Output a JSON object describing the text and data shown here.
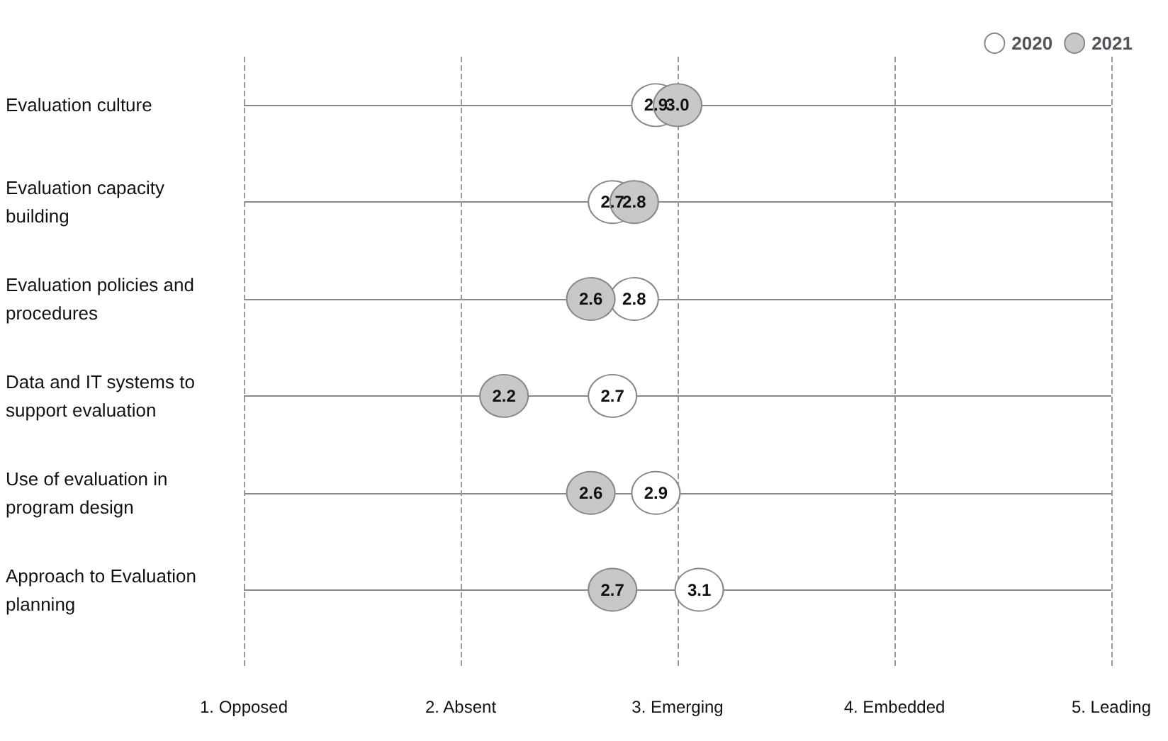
{
  "chart_data": {
    "type": "scatter",
    "orientation": "horizontal",
    "categories": [
      "Evaluation culture",
      "Evaluation capacity building",
      "Evaluation policies and procedures",
      "Data and IT systems to support evaluation",
      "Use of evaluation in program design",
      "Approach to Evaluation planning"
    ],
    "series": [
      {
        "name": "2020",
        "color": "#ffffff",
        "values": [
          2.9,
          2.7,
          2.8,
          2.7,
          2.9,
          3.1
        ],
        "value_labels": [
          "2.9",
          "2.7",
          "2.8",
          "2.7",
          "2.9",
          "3.1"
        ]
      },
      {
        "name": "2021",
        "color": "#c8c8c8",
        "values": [
          3.0,
          2.8,
          2.6,
          2.2,
          2.6,
          2.7
        ],
        "value_labels": [
          "3.0",
          "2.8",
          "2.6",
          "2.2",
          "2.6",
          "2.7"
        ]
      }
    ],
    "xlim": [
      1,
      5
    ],
    "xticks": [
      {
        "value": 1,
        "label": "1. Opposed"
      },
      {
        "value": 2,
        "label": "2. Absent"
      },
      {
        "value": 3,
        "label": "3. Emerging"
      },
      {
        "value": 4,
        "label": "4. Embedded"
      },
      {
        "value": 5,
        "label": "5. Leading"
      }
    ],
    "grid": true,
    "legend": "top right",
    "marker": "circle"
  }
}
